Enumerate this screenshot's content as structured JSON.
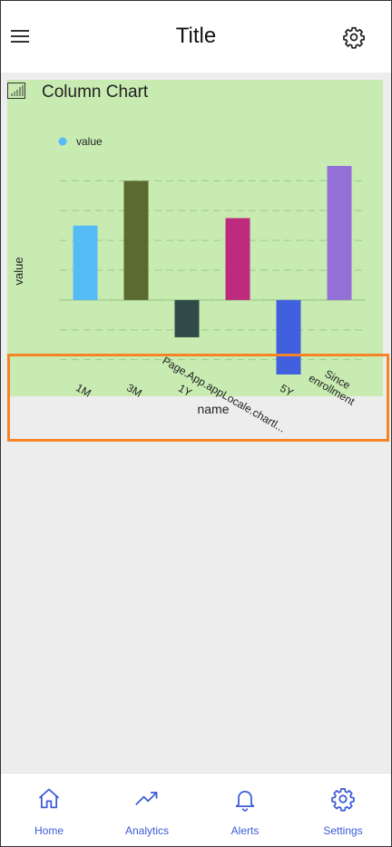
{
  "header": {
    "title": "Title"
  },
  "card": {
    "title": "Column Chart"
  },
  "chart_data": {
    "type": "bar",
    "title": "Column Chart",
    "categories": [
      "1M",
      "3M",
      "1Y",
      "Page.App.appLocale.chartl...",
      "5Y",
      "Since enrollment"
    ],
    "category_lines": [
      [
        "1M"
      ],
      [
        "3M"
      ],
      [
        "1Y"
      ],
      [
        "Page.App.appLocale.chartl..."
      ],
      [
        "5Y"
      ],
      [
        "Since",
        "enrollment"
      ]
    ],
    "series": [
      {
        "name": "value",
        "values": [
          2.5,
          4.0,
          -1.25,
          2.75,
          -2.5,
          4.5
        ],
        "colors": [
          "#55bbf7",
          "#5a6a31",
          "#2f4a47",
          "#bd2a7e",
          "#4160e0",
          "#9370d8"
        ]
      }
    ],
    "xlabel": "name",
    "ylabel": "value",
    "ylim": [
      -2.5,
      4.5
    ],
    "grid": true,
    "legend_position": "top-left",
    "legend_color": "#55bbf7"
  },
  "bottom_nav": {
    "items": [
      {
        "label": "Home",
        "icon": "home-icon"
      },
      {
        "label": "Analytics",
        "icon": "analytics-icon"
      },
      {
        "label": "Alerts",
        "icon": "bell-icon"
      },
      {
        "label": "Settings",
        "icon": "gear-icon"
      }
    ]
  }
}
